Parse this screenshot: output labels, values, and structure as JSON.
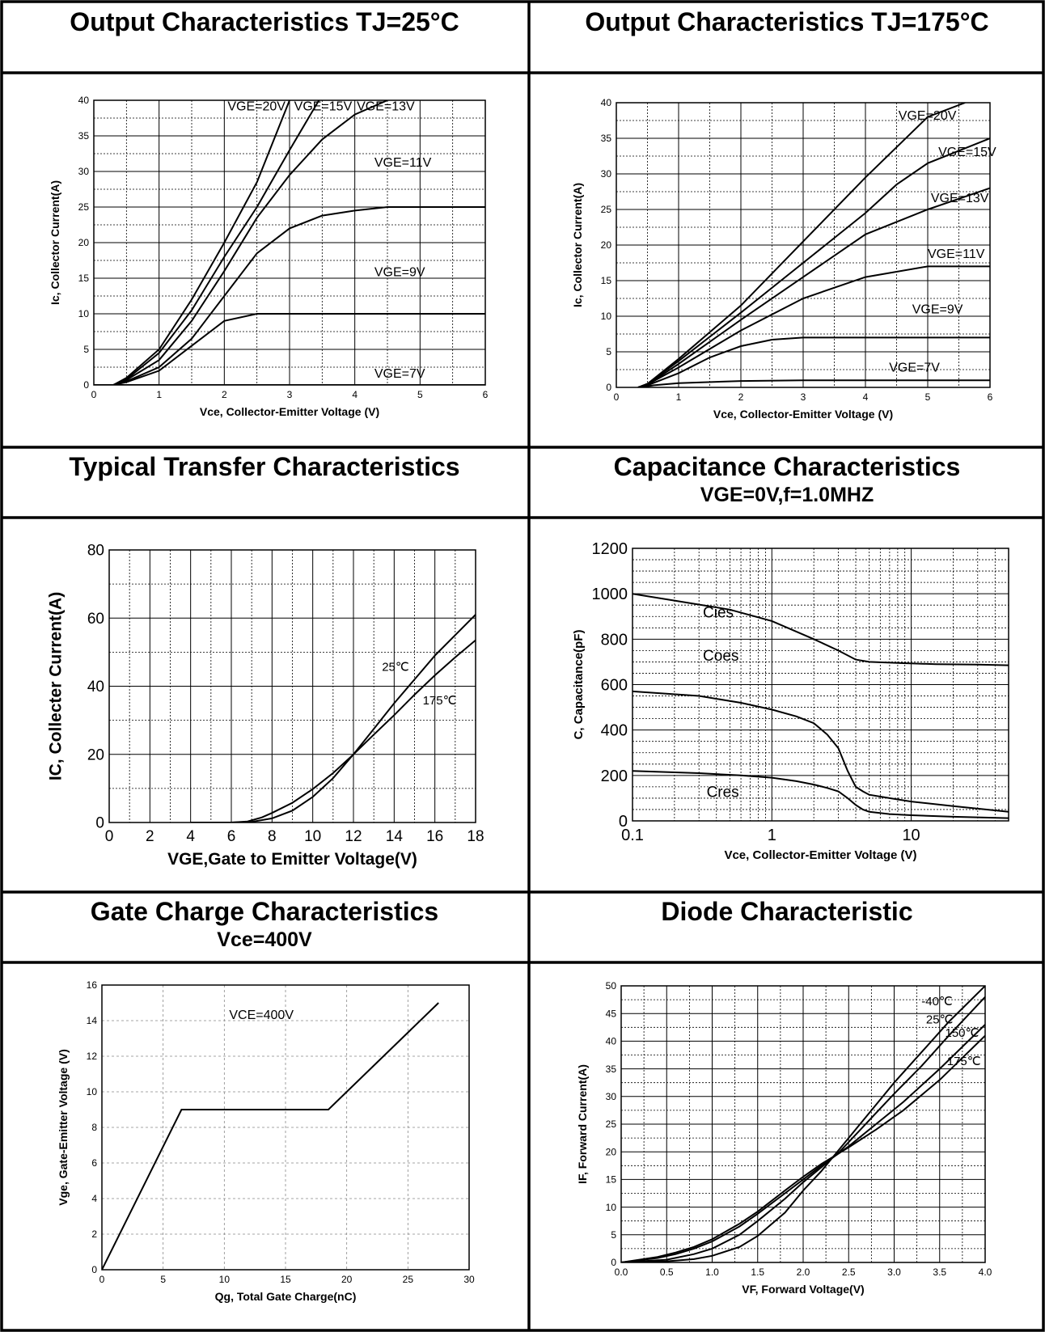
{
  "chart_data": [
    {
      "id": "out25",
      "type": "line",
      "title": "Output Characteristics TJ=25°C",
      "xlabel": "Vce, Collector-Emitter Voltage (V)",
      "ylabel": "Ic, Collector Current(A)",
      "xlim": [
        0,
        6
      ],
      "ylim": [
        0,
        40
      ],
      "xticks": [
        0,
        1,
        2,
        3,
        4,
        5,
        6
      ],
      "yticks": [
        0,
        5,
        10,
        15,
        20,
        25,
        30,
        35,
        40
      ],
      "xminor": 2,
      "yminor": 2,
      "grid": true,
      "series": [
        {
          "name": "VGE=20V",
          "x": [
            0.3,
            0.5,
            1.0,
            1.5,
            2.0,
            2.5,
            3.0
          ],
          "y": [
            0,
            1,
            5,
            12,
            20,
            28.5,
            40
          ]
        },
        {
          "name": "VGE=15V",
          "x": [
            0.3,
            0.5,
            1.0,
            1.5,
            2.0,
            2.5,
            3.0,
            3.45
          ],
          "y": [
            0,
            0.8,
            4.5,
            10.5,
            18,
            25,
            33,
            40
          ]
        },
        {
          "name": "VGE=13V",
          "x": [
            0.3,
            0.5,
            1.0,
            1.5,
            2.0,
            2.5,
            3.0,
            3.5,
            4.0,
            4.5
          ],
          "y": [
            0,
            0.7,
            3.5,
            9,
            16,
            23.5,
            29.5,
            34.5,
            38,
            40
          ]
        },
        {
          "name": "VGE=11V",
          "x": [
            0.3,
            0.5,
            1.0,
            1.5,
            2.0,
            2.5,
            3.0,
            3.5,
            4.0,
            4.5,
            5.0,
            6.0
          ],
          "y": [
            0,
            0.5,
            2.5,
            6.5,
            12.5,
            18.5,
            22,
            23.8,
            24.5,
            25,
            25,
            25
          ]
        },
        {
          "name": "VGE=9V",
          "x": [
            0.3,
            0.5,
            1.0,
            1.5,
            2.0,
            2.5,
            3.0,
            6.0
          ],
          "y": [
            0,
            0.4,
            2,
            5.5,
            9,
            10,
            10,
            10
          ]
        },
        {
          "name": "VGE=7V",
          "x": [
            0,
            6
          ],
          "y": [
            0,
            0
          ]
        }
      ],
      "annotations": [
        {
          "text": "VGE=20V",
          "x": 2.05,
          "y": 38.6
        },
        {
          "text": "VGE=15V",
          "x": 3.07,
          "y": 38.6
        },
        {
          "text": "VGE=13V",
          "x": 4.03,
          "y": 38.6
        },
        {
          "text": "VGE=11V",
          "x": 4.3,
          "y": 30.7
        },
        {
          "text": "VGE=9V",
          "x": 4.3,
          "y": 15.3
        },
        {
          "text": "VGE=7V",
          "x": 4.3,
          "y": 1.0
        }
      ]
    },
    {
      "id": "out175",
      "type": "line",
      "title": "Output Characteristics TJ=175°C",
      "xlabel": "Vce, Collector-Emitter Voltage (V)",
      "ylabel": "Ic, Collector Current(A)",
      "xlim": [
        0,
        6
      ],
      "ylim": [
        0,
        40
      ],
      "xticks": [
        0,
        1,
        2,
        3,
        4,
        5,
        6
      ],
      "yticks": [
        0,
        5,
        10,
        15,
        20,
        25,
        30,
        35,
        40
      ],
      "xminor": 2,
      "yminor": 2,
      "grid": true,
      "series": [
        {
          "name": "VGE=20V",
          "x": [
            0.35,
            0.5,
            1.0,
            2.0,
            3.0,
            4.0,
            5.0,
            5.6
          ],
          "y": [
            0,
            0.5,
            4,
            11.5,
            20.5,
            29.5,
            38,
            40
          ]
        },
        {
          "name": "VGE=15V",
          "x": [
            0.35,
            0.5,
            1.0,
            2.0,
            3.0,
            4.0,
            4.5,
            5.0,
            6.0
          ],
          "y": [
            0,
            0.5,
            3.7,
            10.5,
            17.5,
            24.5,
            28.5,
            31.5,
            35
          ]
        },
        {
          "name": "VGE=13V",
          "x": [
            0.35,
            0.5,
            1.0,
            2.0,
            3.0,
            4.0,
            5.0,
            6.0
          ],
          "y": [
            0,
            0.4,
            3.3,
            9.5,
            15.5,
            21.5,
            25,
            28
          ]
        },
        {
          "name": "VGE=11V",
          "x": [
            0.35,
            0.5,
            1.0,
            2.0,
            3.0,
            4.0,
            5.0,
            6.0
          ],
          "y": [
            0,
            0.4,
            2.8,
            8,
            12.5,
            15.5,
            17,
            17
          ]
        },
        {
          "name": "VGE=9V",
          "x": [
            0.35,
            0.5,
            1.0,
            1.5,
            2.0,
            2.5,
            3.0,
            6.0
          ],
          "y": [
            0,
            0.3,
            2,
            4.2,
            5.8,
            6.7,
            7,
            7
          ]
        },
        {
          "name": "VGE=7V",
          "x": [
            0.4,
            0.6,
            1.0,
            2.0,
            3.0,
            6.0
          ],
          "y": [
            0,
            0.3,
            0.6,
            0.9,
            1,
            1
          ]
        }
      ],
      "annotations": [
        {
          "text": "VGE=20V",
          "x": 4.53,
          "y": 37.6
        },
        {
          "text": "VGE=15V",
          "x": 5.17,
          "y": 32.5
        },
        {
          "text": "VGE=13V",
          "x": 5.05,
          "y": 26.0
        },
        {
          "text": "VGE=11V",
          "x": 5.0,
          "y": 18.2
        },
        {
          "text": "VGE=9V",
          "x": 4.75,
          "y": 10.4
        },
        {
          "text": "VGE=7V",
          "x": 4.38,
          "y": 2.2
        }
      ]
    },
    {
      "id": "transfer",
      "type": "line",
      "title": "Typical Transfer Characteristics",
      "xlabel": "VGE,Gate to Emitter Voltage(V)",
      "ylabel": "IC, Collecter Current(A)",
      "xlim": [
        0,
        18
      ],
      "ylim": [
        0,
        80
      ],
      "xticks": [
        0,
        2,
        4,
        6,
        8,
        10,
        12,
        14,
        16,
        18
      ],
      "yticks": [
        0,
        20,
        40,
        60,
        80
      ],
      "xminor": 2,
      "yminor": 2,
      "grid": true,
      "series": [
        {
          "name": "25℃",
          "x": [
            4,
            6,
            7,
            8,
            9,
            10,
            11,
            12,
            13,
            14,
            15,
            16,
            17,
            18
          ],
          "y": [
            0,
            0,
            0.2,
            1.2,
            3.5,
            7.5,
            13,
            20,
            27.5,
            35,
            42,
            49,
            55,
            61
          ]
        },
        {
          "name": "175℃",
          "x": [
            4,
            6,
            6.8,
            7.5,
            8,
            9,
            10,
            11,
            12,
            13,
            14,
            15,
            16,
            17,
            18
          ],
          "y": [
            0,
            0,
            0.3,
            1.5,
            2.8,
            5.8,
            9.8,
            14.5,
            20,
            25.8,
            31.5,
            37.5,
            43.2,
            48.5,
            53.5
          ]
        }
      ],
      "annotations": [
        {
          "text": "25℃",
          "x": 13.4,
          "y": 44.5
        },
        {
          "text": "175℃",
          "x": 15.4,
          "y": 34.6
        }
      ]
    },
    {
      "id": "capacitance",
      "type": "line",
      "title": "Capacitance Characteristics",
      "subtitle": "VGE=0V,f=1.0MHZ",
      "xlabel": "Vce, Collector-Emitter Voltage (V)",
      "ylabel": "C, Capacitance(pF)",
      "xscale": "log",
      "xlim": [
        0.1,
        50
      ],
      "ylim": [
        0,
        1200
      ],
      "xticks": [
        0.1,
        1,
        10
      ],
      "xticklabels": [
        "0.1",
        "1",
        "10"
      ],
      "yticks": [
        0,
        200,
        400,
        600,
        800,
        1000,
        1200
      ],
      "yminor": 4,
      "grid": true,
      "series": [
        {
          "name": "Cies",
          "x": [
            0.1,
            0.2,
            0.5,
            1,
            2,
            3,
            4,
            5,
            8,
            15,
            30,
            50
          ],
          "y": [
            1000,
            970,
            930,
            880,
            800,
            750,
            710,
            700,
            695,
            690,
            688,
            685
          ]
        },
        {
          "name": "Coes",
          "x": [
            0.1,
            0.3,
            0.6,
            1,
            1.5,
            2,
            2.5,
            3,
            3.5,
            4,
            4.5,
            5,
            7,
            10,
            20,
            50
          ],
          "y": [
            570,
            550,
            520,
            490,
            460,
            430,
            380,
            320,
            220,
            150,
            130,
            115,
            100,
            85,
            65,
            40
          ]
        },
        {
          "name": "Cres",
          "x": [
            0.1,
            0.3,
            0.6,
            1,
            1.5,
            2,
            2.5,
            3,
            3.5,
            4,
            4.5,
            5,
            7,
            10,
            20,
            50
          ],
          "y": [
            220,
            210,
            200,
            190,
            175,
            160,
            145,
            130,
            100,
            70,
            50,
            40,
            30,
            25,
            18,
            12
          ]
        }
      ],
      "annotations": [
        {
          "text": "Cies",
          "x": 0.32,
          "y": 895
        },
        {
          "text": "Coes",
          "x": 0.32,
          "y": 705
        },
        {
          "text": "Cres",
          "x": 0.34,
          "y": 105
        }
      ]
    },
    {
      "id": "gatecharge",
      "type": "line",
      "title": "Gate Charge Characteristics",
      "subtitle": "Vce=400V",
      "xlabel": "Qg, Total Gate Charge(nC)",
      "ylabel": "Vge, Gate-Emitter Voltage (V)",
      "xlim": [
        0,
        30
      ],
      "ylim": [
        0,
        16
      ],
      "xticks": [
        0,
        5,
        10,
        15,
        20,
        25,
        30
      ],
      "yticks": [
        0,
        2,
        4,
        6,
        8,
        10,
        12,
        14,
        16
      ],
      "grid": "dashed",
      "series": [
        {
          "x": [
            0,
            6.5,
            18.5,
            27.5
          ],
          "y": [
            0,
            9,
            9,
            15
          ]
        }
      ],
      "annotations": [
        {
          "text": "VCE=400V",
          "x": 10.4,
          "y": 14.1
        }
      ]
    },
    {
      "id": "diode",
      "type": "line",
      "title": "Diode Characteristic",
      "xlabel": "VF, Forward Voltage(V)",
      "ylabel": "IF, Forward Current(A)",
      "xlim": [
        0,
        4.0
      ],
      "ylim": [
        0,
        50
      ],
      "xticks": [
        0,
        0.5,
        1.0,
        1.5,
        2.0,
        2.5,
        3.0,
        3.5,
        4.0
      ],
      "xticklabels": [
        "0.0",
        "0.5",
        "1.0",
        "1.5",
        "2.0",
        "2.5",
        "3.0",
        "3.5",
        "4.0"
      ],
      "yticks": [
        0,
        5,
        10,
        15,
        20,
        25,
        30,
        35,
        40,
        45,
        50
      ],
      "xminor": 2,
      "yminor": 2,
      "grid": true,
      "series": [
        {
          "name": "-40℃",
          "x": [
            0,
            0.5,
            0.8,
            1.0,
            1.3,
            1.5,
            1.8,
            2.0,
            2.2,
            2.4,
            2.6,
            2.8,
            3.0,
            3.3,
            3.6,
            4.0
          ],
          "y": [
            0,
            0.2,
            0.6,
            1.2,
            2.8,
            4.8,
            9,
            13,
            16.5,
            20.5,
            24.5,
            28.5,
            32.5,
            38,
            43.5,
            50
          ]
        },
        {
          "name": "25℃",
          "x": [
            0,
            0.5,
            0.8,
            1.0,
            1.3,
            1.5,
            1.8,
            2.0,
            2.2,
            2.4,
            2.6,
            2.8,
            3.0,
            3.3,
            3.6,
            4.0
          ],
          "y": [
            0,
            0.5,
            1.5,
            2.5,
            5,
            7.5,
            11.5,
            14.5,
            17.2,
            20,
            23.5,
            27,
            30.5,
            35.5,
            41,
            48
          ]
        },
        {
          "name": "150℃",
          "x": [
            0,
            0.4,
            0.6,
            0.8,
            1.0,
            1.3,
            1.5,
            1.8,
            2.0,
            2.2,
            2.5,
            2.8,
            3.1,
            3.5,
            4.0
          ],
          "y": [
            0,
            0.8,
            1.5,
            2.5,
            3.8,
            6.5,
            8.8,
            12.5,
            15,
            17.5,
            21,
            25,
            29,
            35,
            43
          ]
        },
        {
          "name": "175℃",
          "x": [
            0,
            0.4,
            0.6,
            0.8,
            1.0,
            1.3,
            1.5,
            1.8,
            2.0,
            2.2,
            2.5,
            2.8,
            3.1,
            3.5,
            4.0
          ],
          "y": [
            0,
            1.0,
            1.8,
            2.8,
            4.2,
            7,
            9.2,
            13,
            15.5,
            17.8,
            20.8,
            24,
            27.5,
            33,
            41
          ]
        }
      ],
      "annotations": [
        {
          "text": "-40℃",
          "x": 3.3,
          "y": 46.5
        },
        {
          "text": "25℃",
          "x": 3.35,
          "y": 43.2
        },
        {
          "text": "150℃",
          "x": 3.56,
          "y": 40.8
        },
        {
          "text": "175℃",
          "x": 3.58,
          "y": 35.7
        }
      ]
    }
  ]
}
